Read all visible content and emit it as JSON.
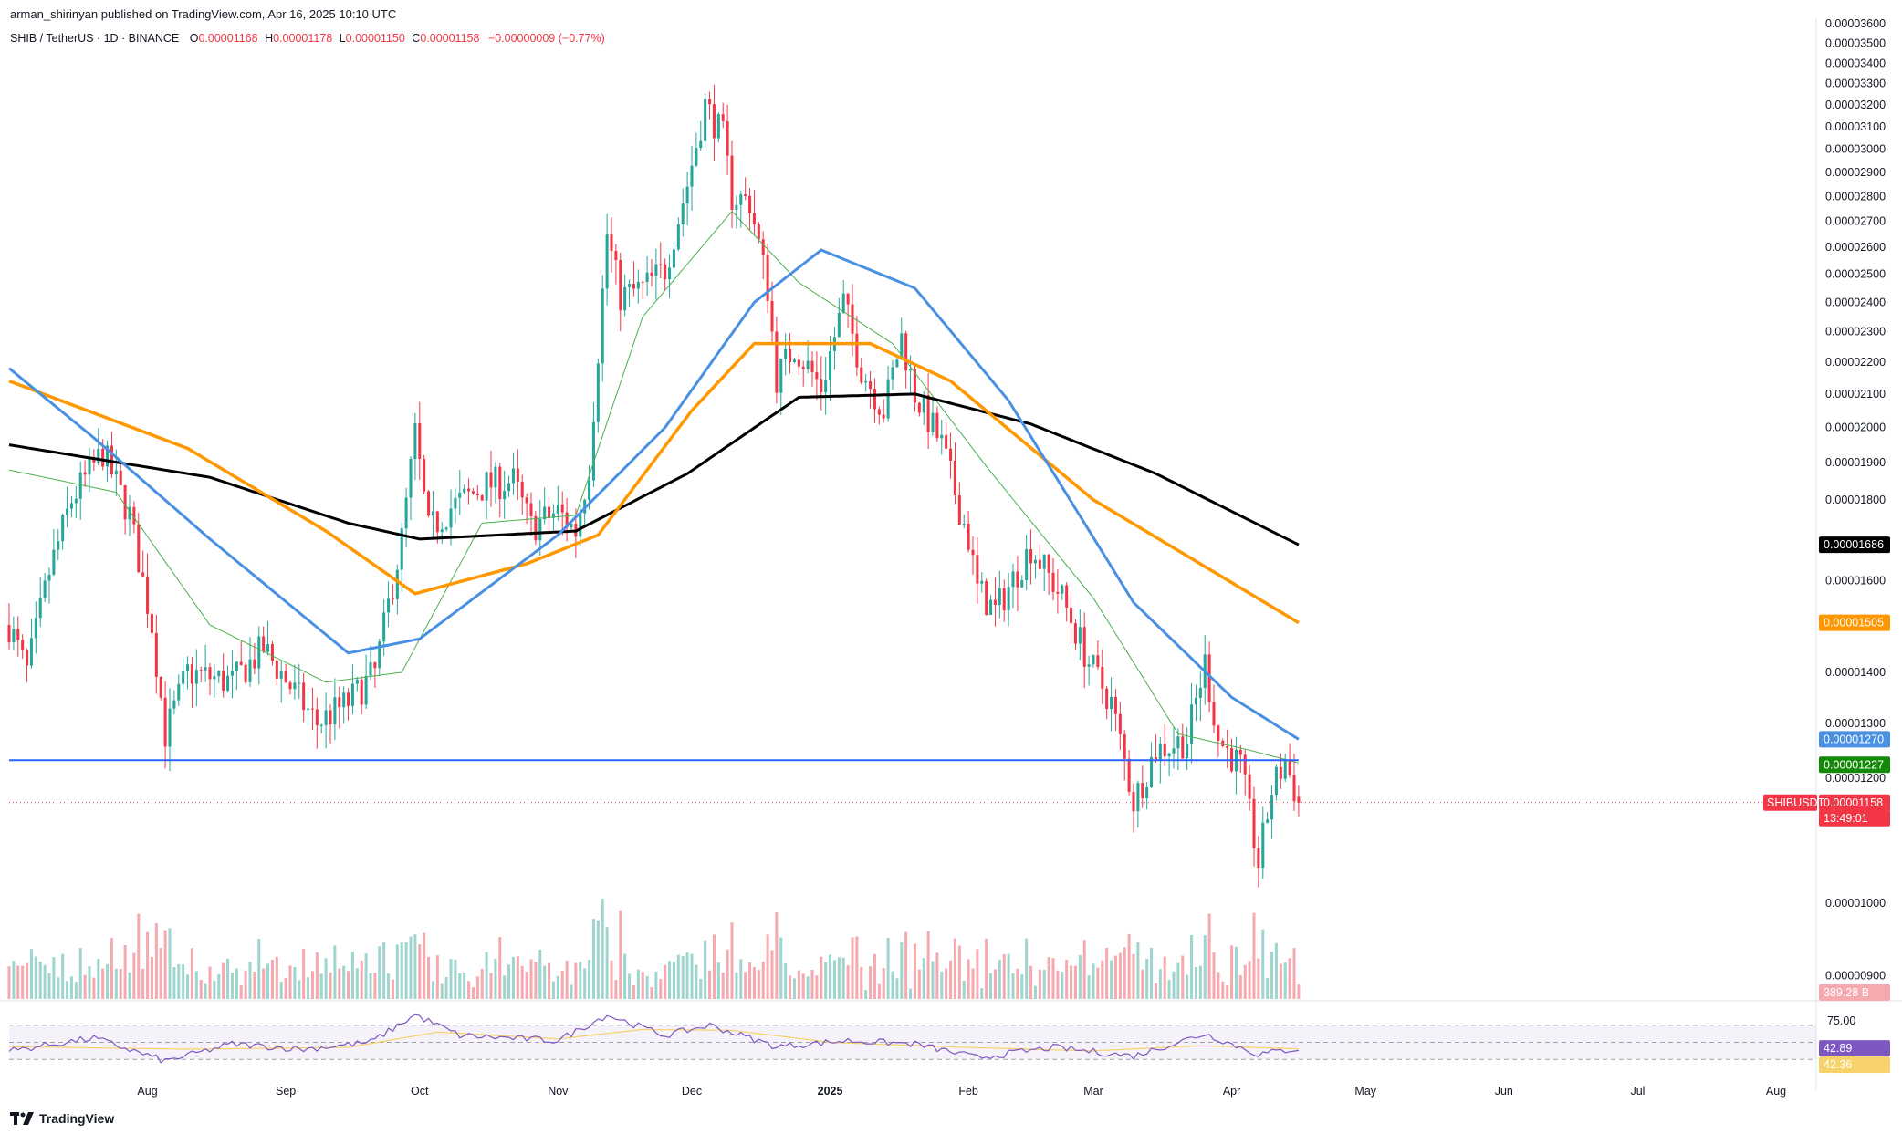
{
  "header": {
    "publisher": "arman_shirinyan published on TradingView.com, Apr 16, 2025 10:10 UTC",
    "symbol": "SHIB / TetherUS · 1D · BINANCE",
    "open_k": "O",
    "open": "0.00001168",
    "high_k": "H",
    "high": "0.00001178",
    "low_k": "L",
    "low": "0.00001150",
    "close_k": "C",
    "close": "0.00001158",
    "change": "−0.00000009 (−0.77%)"
  },
  "logo": {
    "icon": "tradingview-logo-icon",
    "text": "TradingView"
  },
  "colors": {
    "up": "#26a69a",
    "down": "#f23645",
    "ma200": "#000000",
    "ma100": "#ff9800",
    "ma50": "#4a90e2",
    "ma20": "#4caf50",
    "support": "#2962ff",
    "rsi": "#7e57c2",
    "rsi_ma": "#f7d26a"
  },
  "chart_data": {
    "type": "candlestick",
    "symbol": "SHIBUSDT",
    "timeframe": "1D",
    "y_axis": {
      "ticks": [
        "0.00003600",
        "0.00003500",
        "0.00003400",
        "0.00003300",
        "0.00003200",
        "0.00003100",
        "0.00003000",
        "0.00002900",
        "0.00002800",
        "0.00002700",
        "0.00002600",
        "0.00002500",
        "0.00002400",
        "0.00002300",
        "0.00002200",
        "0.00002100",
        "0.00002000",
        "0.00001900",
        "0.00001800",
        "0.00001600",
        "0.00001400",
        "0.00001300",
        "0.00001200",
        "0.00001000",
        "0.00000900"
      ],
      "ylim": [
        8.7e-06,
        3.63e-05
      ],
      "scale": "log"
    },
    "x_axis": {
      "ticks": [
        "Aug",
        "Sep",
        "Oct",
        "Nov",
        "Dec",
        "2025",
        "Feb",
        "Mar",
        "Apr",
        "May",
        "Jun",
        "Jul",
        "Aug"
      ],
      "tick_dates": [
        "2024-08-01",
        "2024-09-01",
        "2024-10-01",
        "2024-11-01",
        "2024-12-01",
        "2025-01-01",
        "2025-02-01",
        "2025-03-01",
        "2025-04-01",
        "2025-05-01",
        "2025-06-01",
        "2025-07-01",
        "2025-08-01"
      ],
      "range": [
        "2024-07-01",
        "2025-08-10"
      ]
    },
    "anchors": [
      [
        "2024-07-01",
        1.5e-05
      ],
      [
        "2024-07-05",
        1.4e-05
      ],
      [
        "2024-07-10",
        1.62e-05
      ],
      [
        "2024-07-15",
        1.8e-05
      ],
      [
        "2024-07-22",
        1.93e-05
      ],
      [
        "2024-07-28",
        1.76e-05
      ],
      [
        "2024-08-02",
        1.5e-05
      ],
      [
        "2024-08-05",
        1.28e-05
      ],
      [
        "2024-08-10",
        1.4e-05
      ],
      [
        "2024-08-20",
        1.38e-05
      ],
      [
        "2024-08-27",
        1.45e-05
      ],
      [
        "2024-09-03",
        1.36e-05
      ],
      [
        "2024-09-08",
        1.3e-05
      ],
      [
        "2024-09-15",
        1.34e-05
      ],
      [
        "2024-09-21",
        1.4e-05
      ],
      [
        "2024-09-27",
        1.7e-05
      ],
      [
        "2024-09-30",
        1.98e-05
      ],
      [
        "2024-10-03",
        1.72e-05
      ],
      [
        "2024-10-08",
        1.78e-05
      ],
      [
        "2024-10-16",
        1.84e-05
      ],
      [
        "2024-10-22",
        1.85e-05
      ],
      [
        "2024-10-26",
        1.73e-05
      ],
      [
        "2024-11-01",
        1.77e-05
      ],
      [
        "2024-11-05",
        1.72e-05
      ],
      [
        "2024-11-08",
        1.89e-05
      ],
      [
        "2024-11-12",
        2.65e-05
      ],
      [
        "2024-11-15",
        2.42e-05
      ],
      [
        "2024-11-20",
        2.45e-05
      ],
      [
        "2024-11-25",
        2.52e-05
      ],
      [
        "2024-11-30",
        2.85e-05
      ],
      [
        "2024-12-04",
        3.2e-05
      ],
      [
        "2024-12-08",
        3.05e-05
      ],
      [
        "2024-12-10",
        2.8e-05
      ],
      [
        "2024-12-14",
        2.78e-05
      ],
      [
        "2024-12-18",
        2.45e-05
      ],
      [
        "2024-12-20",
        2.15e-05
      ],
      [
        "2024-12-24",
        2.25e-05
      ],
      [
        "2024-12-30",
        2.12e-05
      ],
      [
        "2025-01-04",
        2.4e-05
      ],
      [
        "2025-01-08",
        2.18e-05
      ],
      [
        "2025-01-13",
        2.05e-05
      ],
      [
        "2025-01-17",
        2.28e-05
      ],
      [
        "2025-01-20",
        2.1e-05
      ],
      [
        "2025-01-26",
        1.95e-05
      ],
      [
        "2025-02-01",
        1.7e-05
      ],
      [
        "2025-02-03",
        1.58e-05
      ],
      [
        "2025-02-07",
        1.53e-05
      ],
      [
        "2025-02-15",
        1.68e-05
      ],
      [
        "2025-02-22",
        1.56e-05
      ],
      [
        "2025-02-28",
        1.42e-05
      ],
      [
        "2025-03-05",
        1.34e-05
      ],
      [
        "2025-03-10",
        1.16e-05
      ],
      [
        "2025-03-15",
        1.25e-05
      ],
      [
        "2025-03-22",
        1.27e-05
      ],
      [
        "2025-03-26",
        1.42e-05
      ],
      [
        "2025-03-29",
        1.27e-05
      ],
      [
        "2025-04-03",
        1.22e-05
      ],
      [
        "2025-04-07",
        1.06e-05
      ],
      [
        "2025-04-10",
        1.18e-05
      ],
      [
        "2025-04-13",
        1.23e-05
      ],
      [
        "2025-04-16",
        1.158e-05
      ]
    ],
    "ma_anchors": {
      "ma200": [
        [
          "2024-07-01",
          1.95e-05
        ],
        [
          "2024-08-15",
          1.86e-05
        ],
        [
          "2024-09-15",
          1.74e-05
        ],
        [
          "2024-10-01",
          1.7e-05
        ],
        [
          "2024-11-05",
          1.72e-05
        ],
        [
          "2024-11-30",
          1.87e-05
        ],
        [
          "2024-12-25",
          2.09e-05
        ],
        [
          "2025-01-20",
          2.1e-05
        ],
        [
          "2025-02-15",
          2.01e-05
        ],
        [
          "2025-03-15",
          1.87e-05
        ],
        [
          "2025-04-16",
          1.686e-05
        ]
      ],
      "ma100": [
        [
          "2024-07-01",
          2.14e-05
        ],
        [
          "2024-08-10",
          1.94e-05
        ],
        [
          "2024-09-10",
          1.72e-05
        ],
        [
          "2024-09-30",
          1.57e-05
        ],
        [
          "2024-10-25",
          1.64e-05
        ],
        [
          "2024-11-10",
          1.71e-05
        ],
        [
          "2024-12-01",
          2.05e-05
        ],
        [
          "2024-12-15",
          2.26e-05
        ],
        [
          "2025-01-10",
          2.26e-05
        ],
        [
          "2025-01-28",
          2.14e-05
        ],
        [
          "2025-03-01",
          1.8e-05
        ],
        [
          "2025-04-16",
          1.505e-05
        ]
      ],
      "ma50": [
        [
          "2024-07-01",
          2.18e-05
        ],
        [
          "2024-07-20",
          1.97e-05
        ],
        [
          "2024-08-15",
          1.7e-05
        ],
        [
          "2024-09-15",
          1.44e-05
        ],
        [
          "2024-10-01",
          1.47e-05
        ],
        [
          "2024-11-01",
          1.71e-05
        ],
        [
          "2024-11-25",
          2e-05
        ],
        [
          "2024-12-15",
          2.4e-05
        ],
        [
          "2024-12-30",
          2.59e-05
        ],
        [
          "2025-01-20",
          2.45e-05
        ],
        [
          "2025-02-10",
          2.08e-05
        ],
        [
          "2025-03-10",
          1.55e-05
        ],
        [
          "2025-04-01",
          1.35e-05
        ],
        [
          "2025-04-16",
          1.27e-05
        ]
      ],
      "ma20": [
        [
          "2024-07-01",
          1.88e-05
        ],
        [
          "2024-07-25",
          1.82e-05
        ],
        [
          "2024-08-15",
          1.5e-05
        ],
        [
          "2024-09-10",
          1.38e-05
        ],
        [
          "2024-09-27",
          1.4e-05
        ],
        [
          "2024-10-15",
          1.74e-05
        ],
        [
          "2024-11-05",
          1.76e-05
        ],
        [
          "2024-11-20",
          2.35e-05
        ],
        [
          "2024-12-10",
          2.74e-05
        ],
        [
          "2024-12-25",
          2.47e-05
        ],
        [
          "2025-01-15",
          2.26e-05
        ],
        [
          "2025-02-05",
          1.89e-05
        ],
        [
          "2025-03-01",
          1.56e-05
        ],
        [
          "2025-03-20",
          1.28e-05
        ],
        [
          "2025-04-05",
          1.25e-05
        ],
        [
          "2025-04-16",
          1.227e-05
        ]
      ]
    },
    "series": [
      {
        "name": "SHIBUSDT",
        "last": "0.00001158",
        "countdown": "13:49:01"
      },
      {
        "last": "0.00001686"
      },
      {
        "last": "0.00001505"
      },
      {
        "last": "0.00001270"
      },
      {
        "last": "0.00001227"
      }
    ],
    "support_level": 1.232e-05,
    "volume": {
      "last": "389.28 B"
    },
    "rsi": {
      "levels": [
        "75.00"
      ],
      "upper": 70,
      "lower": 30,
      "mid": 50,
      "value": "42.89",
      "ma_value": "42.36",
      "anchors": [
        [
          "2024-07-01",
          40
        ],
        [
          "2024-07-20",
          55
        ],
        [
          "2024-08-05",
          28
        ],
        [
          "2024-08-20",
          48
        ],
        [
          "2024-09-05",
          42
        ],
        [
          "2024-09-20",
          50
        ],
        [
          "2024-09-30",
          82
        ],
        [
          "2024-10-10",
          58
        ],
        [
          "2024-11-01",
          52
        ],
        [
          "2024-11-12",
          82
        ],
        [
          "2024-11-25",
          58
        ],
        [
          "2024-12-05",
          70
        ],
        [
          "2024-12-20",
          45
        ],
        [
          "2025-01-05",
          52
        ],
        [
          "2025-01-20",
          48
        ],
        [
          "2025-02-03",
          32
        ],
        [
          "2025-02-20",
          44
        ],
        [
          "2025-03-10",
          34
        ],
        [
          "2025-03-26",
          60
        ],
        [
          "2025-04-07",
          36
        ],
        [
          "2025-04-16",
          42.89
        ]
      ],
      "ma_anchors": [
        [
          "2024-07-01",
          45
        ],
        [
          "2024-08-10",
          42
        ],
        [
          "2024-09-15",
          44
        ],
        [
          "2024-10-05",
          62
        ],
        [
          "2024-11-01",
          54
        ],
        [
          "2024-11-20",
          65
        ],
        [
          "2024-12-10",
          64
        ],
        [
          "2025-01-01",
          50
        ],
        [
          "2025-02-01",
          44
        ],
        [
          "2025-03-01",
          40
        ],
        [
          "2025-03-25",
          46
        ],
        [
          "2025-04-16",
          42.36
        ]
      ]
    }
  }
}
